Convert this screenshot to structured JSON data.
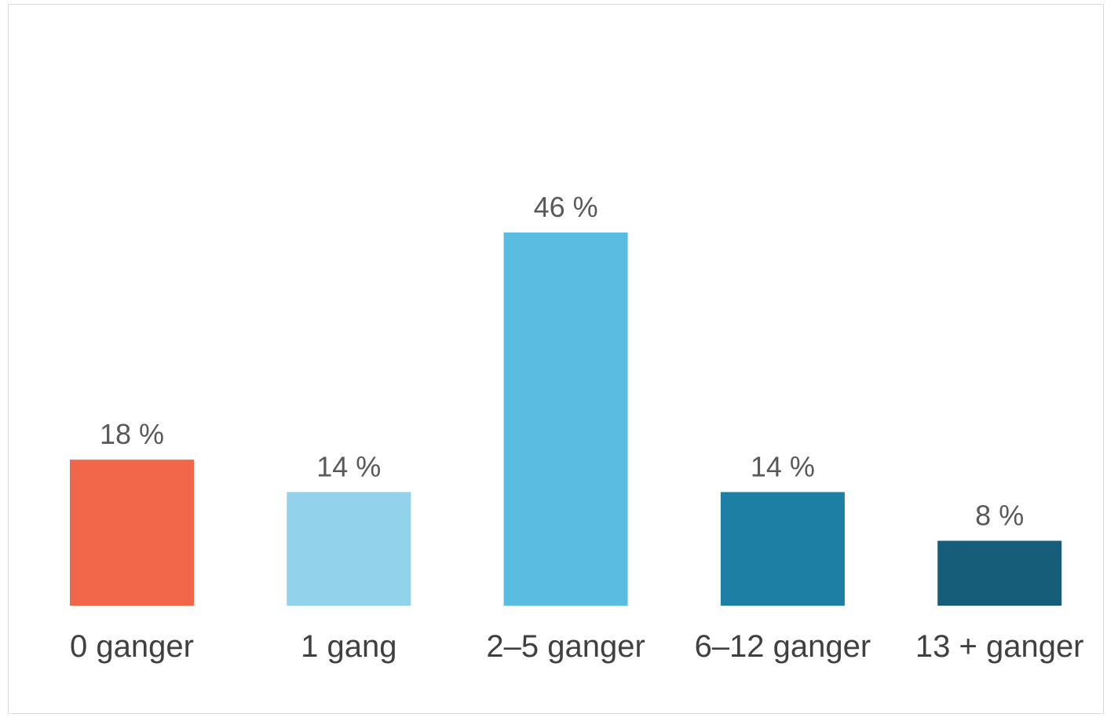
{
  "chart_data": {
    "type": "bar",
    "title": "",
    "xlabel": "",
    "ylabel": "",
    "categories": [
      "0 ganger",
      "1 gang",
      "2–5 ganger",
      "6–12 ganger",
      "13 + ganger"
    ],
    "values": [
      18,
      14,
      46,
      14,
      8
    ],
    "value_labels": [
      "18 %",
      "14 %",
      "46 %",
      "14 %",
      "8 %"
    ],
    "colors": [
      "#f2674a",
      "#92d3eb",
      "#5bbce2",
      "#1e7fa4",
      "#165d79"
    ],
    "ylim": [
      0,
      46
    ],
    "grid": false,
    "legend": "none"
  }
}
